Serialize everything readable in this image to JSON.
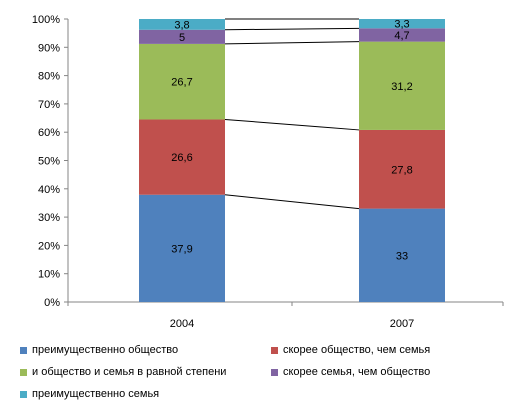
{
  "chart_data": {
    "type": "bar",
    "stacked": true,
    "percent": true,
    "categories": [
      "2004",
      "2007"
    ],
    "series": [
      {
        "name": "преимущественно общество",
        "color": "#4F81BD",
        "values": [
          37.9,
          33
        ],
        "labels": [
          "37,9",
          "33"
        ]
      },
      {
        "name": "скорее общество, чем семья",
        "color": "#C0504D",
        "values": [
          26.6,
          27.8
        ],
        "labels": [
          "26,6",
          "27,8"
        ]
      },
      {
        "name": "и общество и семья в равной степени",
        "color": "#9BBB59",
        "values": [
          26.7,
          31.2
        ],
        "labels": [
          "26,7",
          "31,2"
        ]
      },
      {
        "name": "скорее семья, чем общество",
        "color": "#8064A2",
        "values": [
          5,
          4.7
        ],
        "labels": [
          "5",
          "4,7"
        ]
      },
      {
        "name": "преимущественно семья",
        "color": "#4BACC6",
        "values": [
          3.8,
          3.3
        ],
        "labels": [
          "3,8",
          "3,3"
        ]
      }
    ],
    "y_ticks": [
      "0%",
      "10%",
      "20%",
      "30%",
      "40%",
      "50%",
      "60%",
      "70%",
      "80%",
      "90%",
      "100%"
    ],
    "ylim": [
      0,
      100
    ],
    "grid": false,
    "series_lines": true,
    "legend_position": "bottom"
  }
}
